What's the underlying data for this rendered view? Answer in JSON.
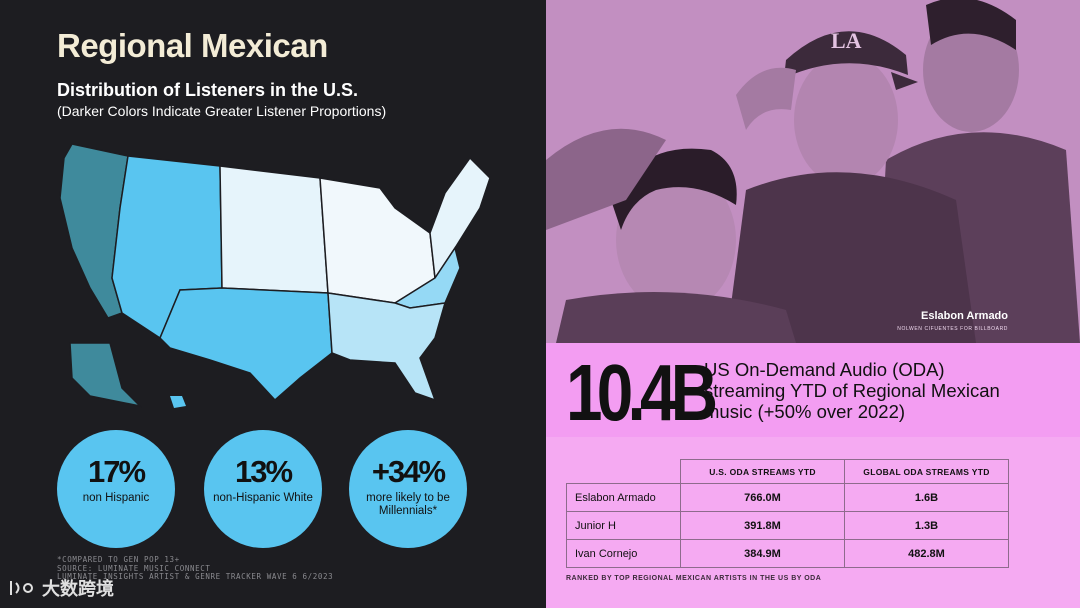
{
  "left": {
    "title": "Regional Mexican",
    "subtitle": "Distribution of Listeners in the U.S.",
    "subnote": "(Darker Colors Indicate Greater Listener Proportions)",
    "stats": [
      {
        "value": "17%",
        "label": "non Hispanic"
      },
      {
        "value": "13%",
        "label": "non-Hispanic White"
      },
      {
        "value": "+34%",
        "label": "more likely to be Millennials*"
      }
    ],
    "footnote": [
      "*Compared to Gen Pop 13+",
      "Source: Luminate Music Connect",
      "Luminate Insights Artist & Genre Tracker Wave 6 6/2023"
    ],
    "watermark": "大数跨境"
  },
  "right": {
    "photo_caption": "Eslabon Armado",
    "photo_credit": "NOLWEN CIFUENTES FOR BILLBOARD",
    "big_number": "10.4B",
    "big_desc": "US On-Demand Audio (ODA) streaming YTD of Regional Mexican music (+50% over 2022)",
    "table": {
      "headers": [
        "U.S. ODA STREAMS YTD",
        "GLOBAL ODA STREAMS YTD"
      ],
      "rows": [
        {
          "artist": "Eslabon Armado",
          "us": "766.0M",
          "global": "1.6B"
        },
        {
          "artist": "Junior H",
          "us": "391.8M",
          "global": "1.3B"
        },
        {
          "artist": "Ivan Cornejo",
          "us": "384.9M",
          "global": "482.8M"
        }
      ]
    },
    "rank_note": "RANKED BY TOP REGIONAL MEXICAN ARTISTS IN THE US BY ODA"
  },
  "colors": {
    "map_darkest": "#3f8a9c",
    "map_dark": "#59c5f0",
    "map_mid": "#95d9f5",
    "map_light": "#e6f4fb",
    "stat_circle": "#59c5f0",
    "pink_band": "#f39df2",
    "photo_tint": "#c28fc1"
  }
}
